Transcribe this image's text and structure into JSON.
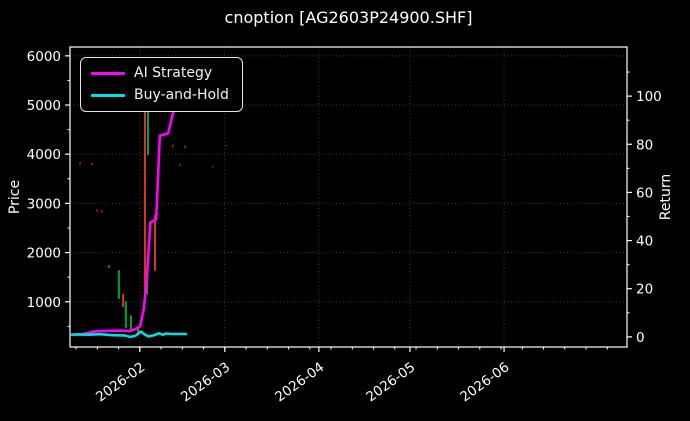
{
  "chart_data": {
    "type": "line",
    "subtype": "strategy-return-lines-with-price-candles",
    "title": "cnoption [AG2603P24900.SHF]",
    "grid": "dotted",
    "legend_position": "upper-left",
    "colors": {
      "background": "#000000",
      "axis": "#ffffff",
      "grid": "#3b3b3b",
      "text": "#ffffff"
    },
    "x_axis": {
      "tick_labels": [
        "2026-02",
        "2026-03",
        "2026-04",
        "2026-05",
        "2026-06"
      ],
      "tick_days": [
        23,
        51,
        82,
        112,
        143
      ],
      "domain_days": [
        0,
        183.5
      ]
    },
    "left_axis": {
      "label": "Price",
      "ticks": [
        1000,
        2000,
        3000,
        4000,
        5000,
        6000
      ],
      "domain": [
        80,
        6180
      ]
    },
    "right_axis": {
      "label": "Return",
      "ticks": [
        0,
        20,
        40,
        60,
        80,
        100
      ],
      "domain": [
        -4.2,
        120.4
      ]
    },
    "series": [
      {
        "name": "AI Strategy",
        "axis": "right",
        "color": "#ff00ff",
        "points": [
          [
            0.7,
            0.8
          ],
          [
            4,
            1.2
          ],
          [
            8.6,
            2.3
          ],
          [
            12,
            2.5
          ],
          [
            16.5,
            2.6
          ],
          [
            19.5,
            2.4
          ],
          [
            21.4,
            3.2
          ],
          [
            23.1,
            4.5
          ],
          [
            24.2,
            11
          ],
          [
            25.2,
            22
          ],
          [
            26.1,
            40
          ],
          [
            26.5,
            47.5
          ],
          [
            28.4,
            48.8
          ],
          [
            29.6,
            83.5
          ],
          [
            32.3,
            84.5
          ],
          [
            33.2,
            89
          ],
          [
            34.5,
            96
          ],
          [
            35.3,
            100
          ],
          [
            36.8,
            103
          ]
        ]
      },
      {
        "name": "Buy-and-Hold",
        "axis": "right",
        "color": "#00e0e0",
        "points": [
          [
            0.7,
            1.0
          ],
          [
            6,
            0.9
          ],
          [
            10,
            1.1
          ],
          [
            14,
            0.7
          ],
          [
            18,
            0.6
          ],
          [
            19.8,
            0.0
          ],
          [
            21.5,
            0.4
          ],
          [
            23.3,
            2.2
          ],
          [
            24.5,
            1.1
          ],
          [
            25.8,
            0.2
          ],
          [
            27.5,
            0.6
          ],
          [
            29.3,
            1.5
          ],
          [
            30.5,
            0.9
          ],
          [
            31.8,
            1.4
          ],
          [
            34,
            1.2
          ],
          [
            38.2,
            1.2
          ]
        ]
      }
    ],
    "candles": [
      {
        "day": 3.3,
        "high": 3840,
        "low": 3790,
        "color": "#8a1616"
      },
      {
        "day": 7.3,
        "high": 3830,
        "low": 3780,
        "color": "#8a1616"
      },
      {
        "day": 8.9,
        "high": 2880,
        "low": 2830,
        "color": "#8a1616"
      },
      {
        "day": 10.5,
        "high": 2860,
        "low": 2810,
        "color": "#8a1616"
      },
      {
        "day": 12.8,
        "high": 1740,
        "low": 1690,
        "color": "#00a236"
      },
      {
        "day": 16.1,
        "high": 1640,
        "low": 1060,
        "color": "#00a236"
      },
      {
        "day": 17.5,
        "high": 1160,
        "low": 890,
        "color": "#d63425"
      },
      {
        "day": 18.4,
        "high": 1010,
        "low": 470,
        "color": "#00a236"
      },
      {
        "day": 20.1,
        "high": 720,
        "low": 440,
        "color": "#00a236"
      },
      {
        "day": 22.4,
        "high": 500,
        "low": 340,
        "color": "#d63425"
      },
      {
        "day": 24.7,
        "high": 5130,
        "low": 1090,
        "color": "#d63425"
      },
      {
        "day": 25.4,
        "high": 1730,
        "low": 1150,
        "color": "#00a236"
      },
      {
        "day": 25.7,
        "high": 4950,
        "low": 3980,
        "color": "#00a236"
      },
      {
        "day": 28.0,
        "high": 2770,
        "low": 1630,
        "color": "#d63425"
      },
      {
        "day": 33.9,
        "high": 4200,
        "low": 4140,
        "color": "#8a1616"
      },
      {
        "day": 36.2,
        "high": 3810,
        "low": 3760,
        "color": "#7a1414"
      },
      {
        "day": 37.9,
        "high": 4180,
        "low": 4120,
        "color": "#8a1616"
      },
      {
        "day": 47.0,
        "high": 3770,
        "low": 3720,
        "color": "#5c1212"
      },
      {
        "day": 51.5,
        "high": 4190,
        "low": 4150,
        "color": "#5c1212"
      }
    ]
  }
}
